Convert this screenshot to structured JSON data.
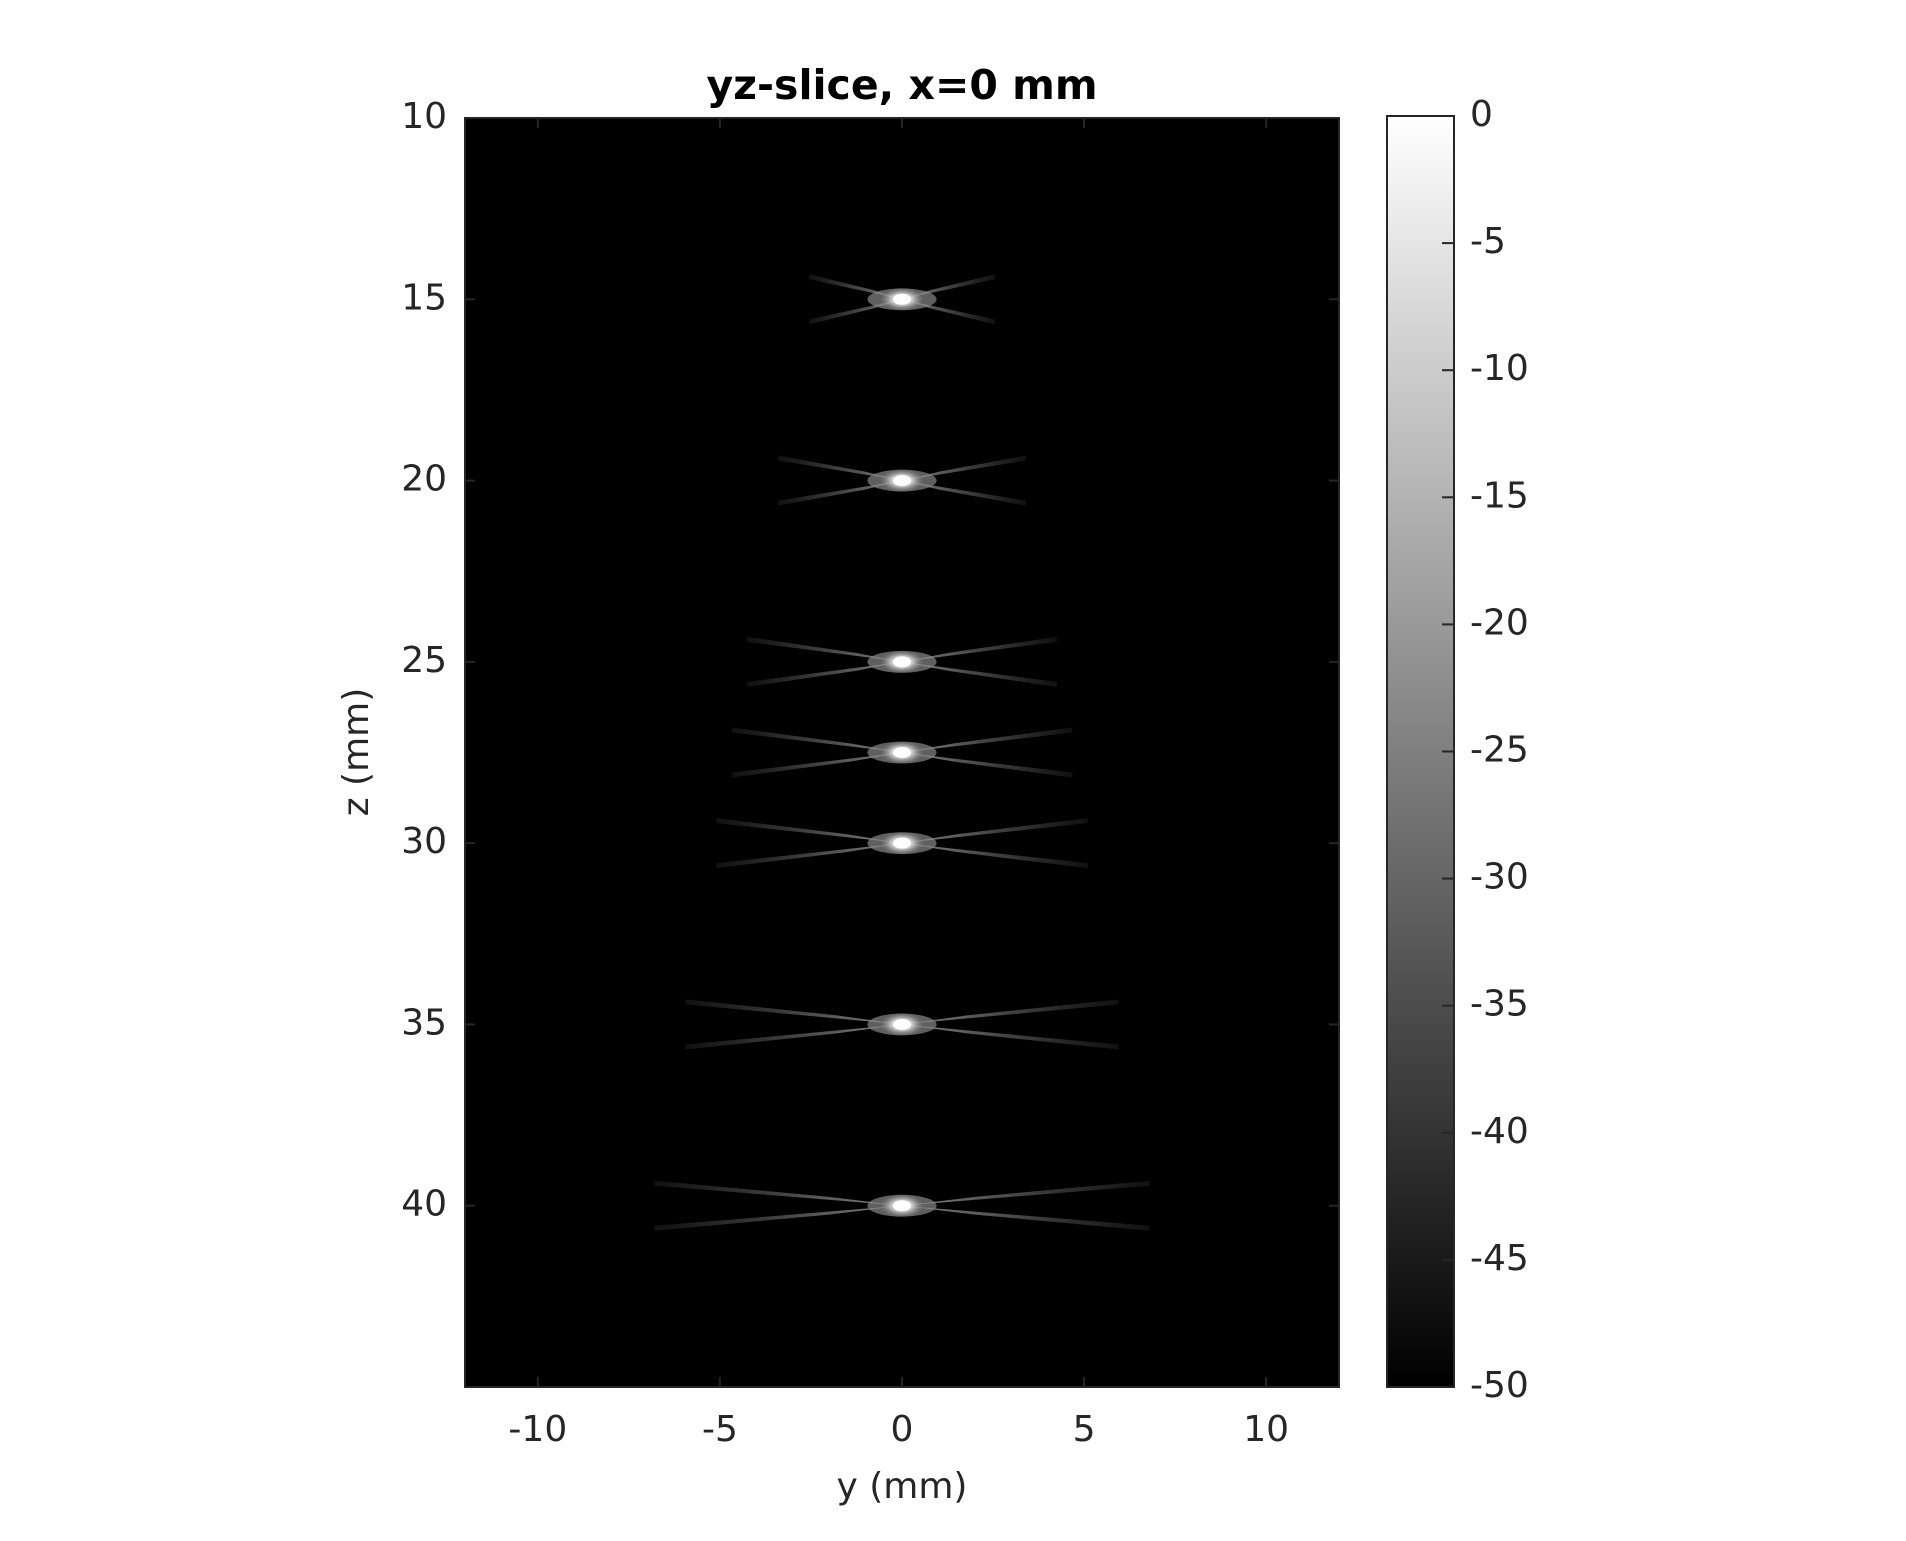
{
  "chart_data": {
    "type": "image",
    "title": "yz-slice, x=0 mm",
    "xlabel": "y (mm)",
    "ylabel": "z (mm)",
    "xlim": [
      -12,
      12
    ],
    "xticks": [
      -10,
      -5,
      0,
      5,
      10
    ],
    "ylim": [
      10,
      45
    ],
    "yticks": [
      10,
      15,
      20,
      25,
      30,
      35,
      40
    ],
    "ydir": "reverse",
    "colormap": "gray",
    "x": [
      0,
      0,
      0,
      0,
      0,
      0,
      0
    ],
    "y": [
      15,
      20,
      25,
      27.5,
      30,
      35,
      40
    ],
    "values": [
      0,
      0,
      0,
      0,
      0,
      0,
      0
    ],
    "colorbar": {
      "clim": [
        -50,
        0
      ],
      "ticks": [
        0,
        -5,
        -10,
        -15,
        -20,
        -25,
        -30,
        -35,
        -40,
        -45,
        -50
      ]
    }
  }
}
